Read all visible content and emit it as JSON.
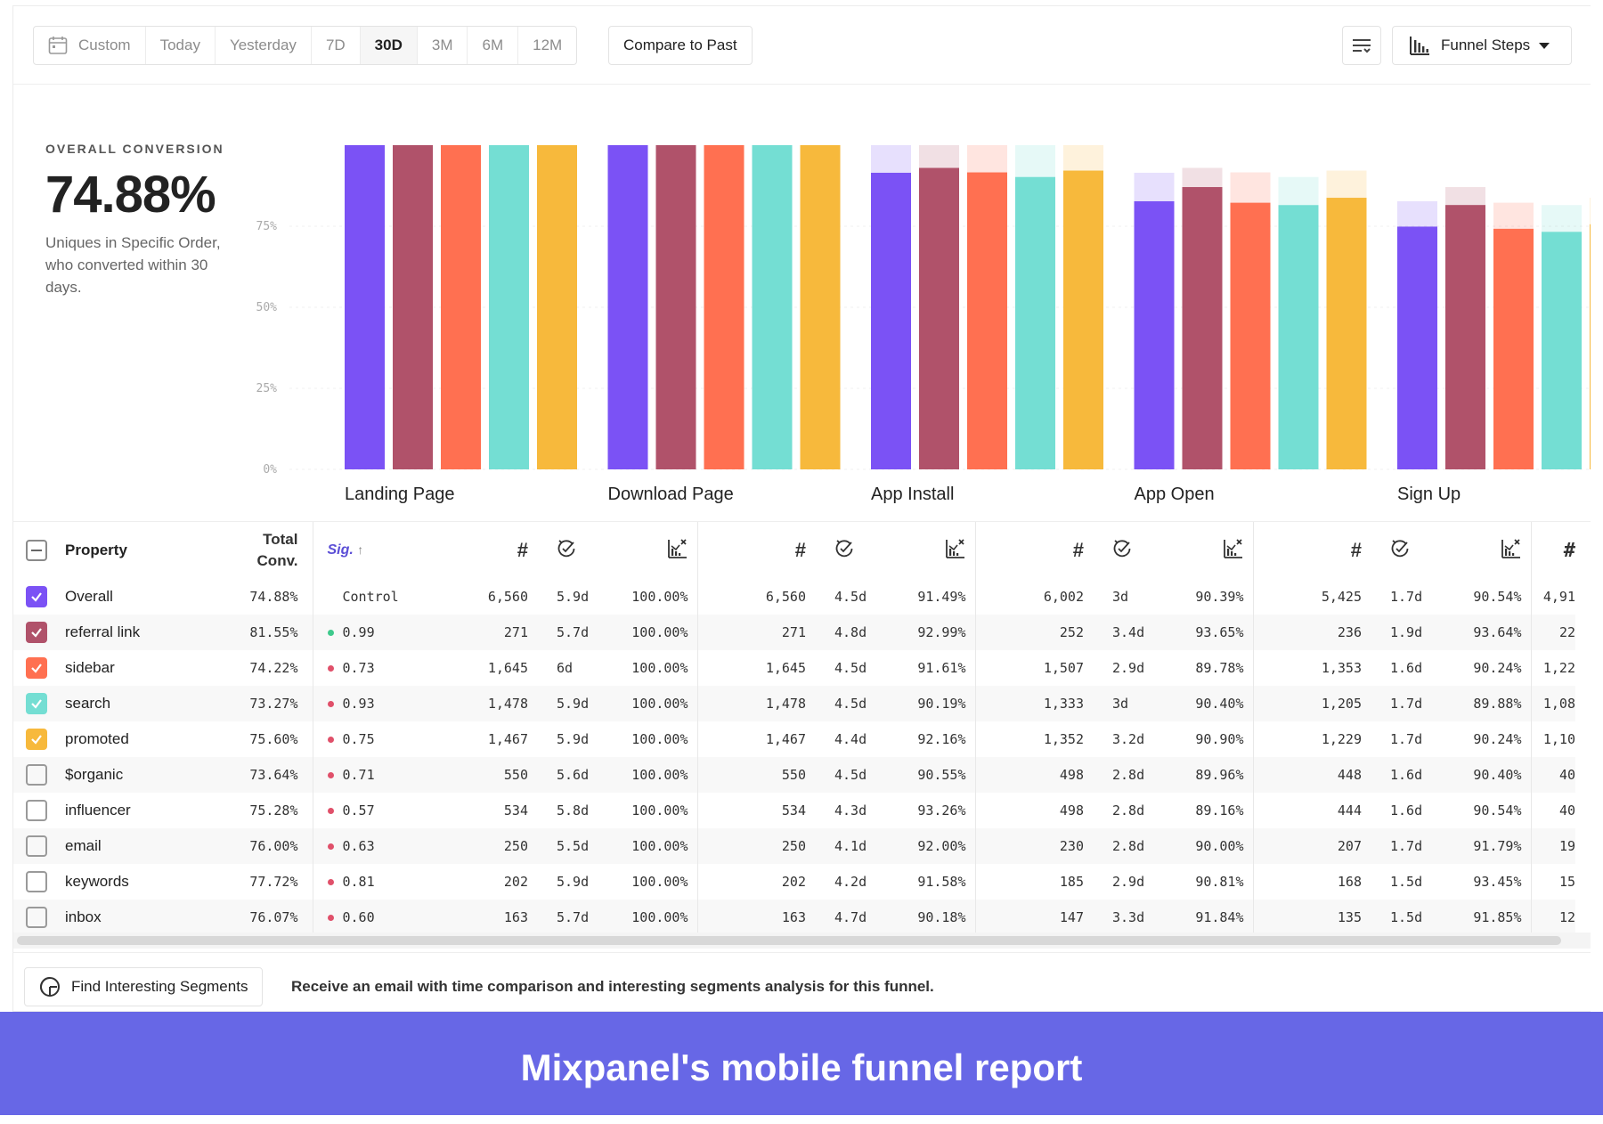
{
  "toolbar": {
    "date_ranges": [
      {
        "label": "Custom",
        "active": false
      },
      {
        "label": "Today",
        "active": false
      },
      {
        "label": "Yesterday",
        "active": false
      },
      {
        "label": "7D",
        "active": false
      },
      {
        "label": "30D",
        "active": true
      },
      {
        "label": "3M",
        "active": false
      },
      {
        "label": "6M",
        "active": false
      },
      {
        "label": "12M",
        "active": false
      }
    ],
    "compare_label": "Compare to Past",
    "view_label": "Funnel Steps"
  },
  "summary": {
    "label": "OVERALL CONVERSION",
    "value": "74.88%",
    "description": "Uniques in Specific Order, who converted within 30 days."
  },
  "colors": {
    "series": [
      "#7b52f5",
      "#b0526a",
      "#ff7051",
      "#74ded3",
      "#f7b93c"
    ],
    "banner": "#6767e6",
    "dot_green": "#3ec98c",
    "dot_red": "#e0506a"
  },
  "chart_data": {
    "type": "bar",
    "y_ticks": [
      "0%",
      "25%",
      "50%",
      "75%"
    ],
    "ylim": [
      0,
      100
    ],
    "categories": [
      "Landing Page",
      "Download Page",
      "App Install",
      "App Open",
      "Sign Up"
    ],
    "series": [
      {
        "name": "Overall",
        "values": [
          100,
          100,
          91.49,
          82.7,
          74.88
        ]
      },
      {
        "name": "referral link",
        "values": [
          100,
          100,
          92.99,
          87.08,
          81.55
        ]
      },
      {
        "name": "sidebar",
        "values": [
          100,
          100,
          91.61,
          82.25,
          74.22
        ]
      },
      {
        "name": "search",
        "values": [
          100,
          100,
          90.19,
          81.53,
          73.27
        ]
      },
      {
        "name": "promoted",
        "values": [
          100,
          100,
          92.16,
          83.78,
          75.6
        ]
      }
    ]
  },
  "table": {
    "headers": {
      "property": "Property",
      "total_l1": "Total",
      "total_l2": "Conv.",
      "sig": "Sig.",
      "sig_arrow": "↑",
      "num": "#",
      "tail": "#"
    },
    "rows": [
      {
        "name": "Overall",
        "checked": true,
        "color": "#7b52f5",
        "total": "74.88%",
        "sig": "Control",
        "dot": "",
        "steps": [
          [
            "6,560",
            "5.9d",
            "100.00%"
          ],
          [
            "6,560",
            "4.5d",
            "91.49%"
          ],
          [
            "6,002",
            "3d",
            "90.39%"
          ],
          [
            "5,425",
            "1.7d",
            "90.54%"
          ]
        ],
        "tail": "4,91"
      },
      {
        "name": "referral link",
        "checked": true,
        "color": "#b0526a",
        "total": "81.55%",
        "sig": "0.99",
        "dot": "#3ec98c",
        "steps": [
          [
            "271",
            "5.7d",
            "100.00%"
          ],
          [
            "271",
            "4.8d",
            "92.99%"
          ],
          [
            "252",
            "3.4d",
            "93.65%"
          ],
          [
            "236",
            "1.9d",
            "93.64%"
          ]
        ],
        "tail": "22"
      },
      {
        "name": "sidebar",
        "checked": true,
        "color": "#ff7051",
        "total": "74.22%",
        "sig": "0.73",
        "dot": "#e0506a",
        "steps": [
          [
            "1,645",
            "6d",
            "100.00%"
          ],
          [
            "1,645",
            "4.5d",
            "91.61%"
          ],
          [
            "1,507",
            "2.9d",
            "89.78%"
          ],
          [
            "1,353",
            "1.6d",
            "90.24%"
          ]
        ],
        "tail": "1,22"
      },
      {
        "name": "search",
        "checked": true,
        "color": "#74ded3",
        "total": "73.27%",
        "sig": "0.93",
        "dot": "#e0506a",
        "steps": [
          [
            "1,478",
            "5.9d",
            "100.00%"
          ],
          [
            "1,478",
            "4.5d",
            "90.19%"
          ],
          [
            "1,333",
            "3d",
            "90.40%"
          ],
          [
            "1,205",
            "1.7d",
            "89.88%"
          ]
        ],
        "tail": "1,08"
      },
      {
        "name": "promoted",
        "checked": true,
        "color": "#f7b93c",
        "total": "75.60%",
        "sig": "0.75",
        "dot": "#e0506a",
        "steps": [
          [
            "1,467",
            "5.9d",
            "100.00%"
          ],
          [
            "1,467",
            "4.4d",
            "92.16%"
          ],
          [
            "1,352",
            "3.2d",
            "90.90%"
          ],
          [
            "1,229",
            "1.7d",
            "90.24%"
          ]
        ],
        "tail": "1,10"
      },
      {
        "name": "$organic",
        "checked": false,
        "color": "",
        "total": "73.64%",
        "sig": "0.71",
        "dot": "#e0506a",
        "steps": [
          [
            "550",
            "5.6d",
            "100.00%"
          ],
          [
            "550",
            "4.5d",
            "90.55%"
          ],
          [
            "498",
            "2.8d",
            "89.96%"
          ],
          [
            "448",
            "1.6d",
            "90.40%"
          ]
        ],
        "tail": "40"
      },
      {
        "name": "influencer",
        "checked": false,
        "color": "",
        "total": "75.28%",
        "sig": "0.57",
        "dot": "#e0506a",
        "steps": [
          [
            "534",
            "5.8d",
            "100.00%"
          ],
          [
            "534",
            "4.3d",
            "93.26%"
          ],
          [
            "498",
            "2.8d",
            "89.16%"
          ],
          [
            "444",
            "1.6d",
            "90.54%"
          ]
        ],
        "tail": "40"
      },
      {
        "name": "email",
        "checked": false,
        "color": "",
        "total": "76.00%",
        "sig": "0.63",
        "dot": "#e0506a",
        "steps": [
          [
            "250",
            "5.5d",
            "100.00%"
          ],
          [
            "250",
            "4.1d",
            "92.00%"
          ],
          [
            "230",
            "2.8d",
            "90.00%"
          ],
          [
            "207",
            "1.7d",
            "91.79%"
          ]
        ],
        "tail": "19"
      },
      {
        "name": "keywords",
        "checked": false,
        "color": "",
        "total": "77.72%",
        "sig": "0.81",
        "dot": "#e0506a",
        "steps": [
          [
            "202",
            "5.9d",
            "100.00%"
          ],
          [
            "202",
            "4.2d",
            "91.58%"
          ],
          [
            "185",
            "2.9d",
            "90.81%"
          ],
          [
            "168",
            "1.5d",
            "93.45%"
          ]
        ],
        "tail": "15"
      },
      {
        "name": "inbox",
        "checked": false,
        "color": "",
        "total": "76.07%",
        "sig": "0.60",
        "dot": "#e0506a",
        "steps": [
          [
            "163",
            "5.7d",
            "100.00%"
          ],
          [
            "163",
            "4.7d",
            "90.18%"
          ],
          [
            "147",
            "3.3d",
            "91.84%"
          ],
          [
            "135",
            "1.5d",
            "91.85%"
          ]
        ],
        "tail": "12"
      }
    ]
  },
  "footer": {
    "button_label": "Find Interesting Segments",
    "text": "Receive an email with time comparison and interesting segments analysis for this funnel."
  },
  "banner": {
    "text": "Mixpanel's mobile funnel report"
  }
}
